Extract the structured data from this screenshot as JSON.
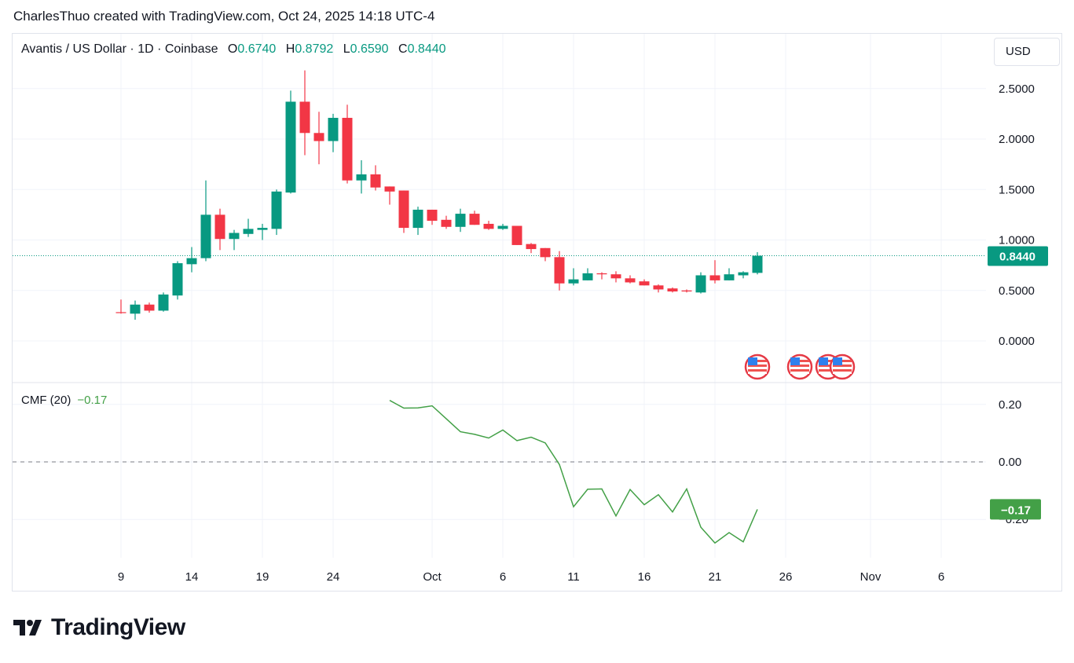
{
  "credit": "CharlesThuo created with TradingView.com, Oct 24, 2025 14:18 UTC-4",
  "legend": {
    "symbol": "Avantis / US Dollar · 1D · Coinbase",
    "o_label": "O",
    "o": "0.6740",
    "h_label": "H",
    "h": "0.8792",
    "l_label": "L",
    "l": "0.6590",
    "c_label": "C",
    "c": "0.8440"
  },
  "currency_button": "USD",
  "cmf_legend": {
    "name": "CMF (20)",
    "value": "−0.17"
  },
  "logo_text": "TradingView",
  "colors": {
    "up": "#089981",
    "down": "#f23645",
    "cmf": "#43a047",
    "grid": "#f0f3fa"
  },
  "chart_data": [
    {
      "type": "candlestick",
      "title": "Avantis / US Dollar · 1D · Coinbase",
      "ylim": [
        -0.25,
        2.9
      ],
      "y_ticks": [
        "2.5000",
        "2.0000",
        "1.5000",
        "1.0000",
        "0.5000",
        "0.0000"
      ],
      "last_price_label": "0.8440",
      "last_price": 0.844,
      "grid": true,
      "x_ticks": [
        {
          "label": "9",
          "date": "2025-09-09"
        },
        {
          "label": "14",
          "date": "2025-09-14"
        },
        {
          "label": "19",
          "date": "2025-09-19"
        },
        {
          "label": "24",
          "date": "2025-09-24"
        },
        {
          "label": "Oct",
          "date": "2025-10-01"
        },
        {
          "label": "6",
          "date": "2025-10-06"
        },
        {
          "label": "11",
          "date": "2025-10-11"
        },
        {
          "label": "16",
          "date": "2025-10-16"
        },
        {
          "label": "21",
          "date": "2025-10-21"
        },
        {
          "label": "26",
          "date": "2025-10-26"
        },
        {
          "label": "Nov",
          "date": "2025-11-01"
        },
        {
          "label": "6",
          "date": "2025-11-06"
        }
      ],
      "candles": [
        [
          "2025-09-09",
          0.285,
          0.41,
          0.27,
          0.28
        ],
        [
          "2025-09-10",
          0.27,
          0.4,
          0.21,
          0.36
        ],
        [
          "2025-09-11",
          0.36,
          0.38,
          0.28,
          0.3
        ],
        [
          "2025-09-12",
          0.3,
          0.48,
          0.29,
          0.46
        ],
        [
          "2025-09-13",
          0.45,
          0.79,
          0.41,
          0.77
        ],
        [
          "2025-09-14",
          0.76,
          0.93,
          0.68,
          0.82
        ],
        [
          "2025-09-15",
          0.82,
          1.59,
          0.79,
          1.25
        ],
        [
          "2025-09-16",
          1.25,
          1.31,
          0.9,
          1.01
        ],
        [
          "2025-09-17",
          1.01,
          1.1,
          0.9,
          1.07
        ],
        [
          "2025-09-18",
          1.06,
          1.21,
          1.03,
          1.11
        ],
        [
          "2025-09-19",
          1.1,
          1.16,
          1.0,
          1.12
        ],
        [
          "2025-09-20",
          1.11,
          1.5,
          1.05,
          1.48
        ],
        [
          "2025-09-21",
          1.47,
          2.48,
          1.46,
          2.37
        ],
        [
          "2025-09-22",
          2.37,
          2.68,
          1.84,
          2.06
        ],
        [
          "2025-09-23",
          2.06,
          2.27,
          1.75,
          1.98
        ],
        [
          "2025-09-24",
          1.98,
          2.25,
          1.87,
          2.21
        ],
        [
          "2025-09-25",
          2.21,
          2.34,
          1.56,
          1.59
        ],
        [
          "2025-09-26",
          1.59,
          1.79,
          1.46,
          1.65
        ],
        [
          "2025-09-27",
          1.65,
          1.74,
          1.49,
          1.52
        ],
        [
          "2025-09-28",
          1.53,
          1.53,
          1.35,
          1.48
        ],
        [
          "2025-09-29",
          1.49,
          1.49,
          1.07,
          1.12
        ],
        [
          "2025-09-30",
          1.12,
          1.33,
          1.05,
          1.3
        ],
        [
          "2025-10-01",
          1.3,
          1.3,
          1.15,
          1.19
        ],
        [
          "2025-10-02",
          1.2,
          1.24,
          1.11,
          1.13
        ],
        [
          "2025-10-03",
          1.13,
          1.31,
          1.08,
          1.26
        ],
        [
          "2025-10-04",
          1.26,
          1.29,
          1.15,
          1.15
        ],
        [
          "2025-10-05",
          1.16,
          1.19,
          1.1,
          1.11
        ],
        [
          "2025-10-06",
          1.11,
          1.16,
          1.1,
          1.14
        ],
        [
          "2025-10-07",
          1.14,
          1.14,
          0.95,
          0.95
        ],
        [
          "2025-10-08",
          0.96,
          0.97,
          0.87,
          0.91
        ],
        [
          "2025-10-09",
          0.92,
          0.92,
          0.79,
          0.83
        ],
        [
          "2025-10-10",
          0.83,
          0.89,
          0.5,
          0.57
        ],
        [
          "2025-10-11",
          0.57,
          0.72,
          0.55,
          0.61
        ],
        [
          "2025-10-12",
          0.6,
          0.72,
          0.6,
          0.67
        ],
        [
          "2025-10-13",
          0.67,
          0.68,
          0.61,
          0.66
        ],
        [
          "2025-10-14",
          0.66,
          0.69,
          0.58,
          0.62
        ],
        [
          "2025-10-15",
          0.62,
          0.65,
          0.57,
          0.58
        ],
        [
          "2025-10-16",
          0.59,
          0.61,
          0.55,
          0.55
        ],
        [
          "2025-10-17",
          0.55,
          0.56,
          0.48,
          0.51
        ],
        [
          "2025-10-18",
          0.52,
          0.53,
          0.48,
          0.49
        ],
        [
          "2025-10-19",
          0.5,
          0.51,
          0.48,
          0.49
        ],
        [
          "2025-10-20",
          0.48,
          0.68,
          0.47,
          0.65
        ],
        [
          "2025-10-21",
          0.65,
          0.8,
          0.57,
          0.6
        ],
        [
          "2025-10-22",
          0.6,
          0.72,
          0.6,
          0.66
        ],
        [
          "2025-10-23",
          0.65,
          0.69,
          0.62,
          0.68
        ],
        [
          "2025-10-24",
          0.674,
          0.8792,
          0.659,
          0.844
        ]
      ],
      "event_flags": [
        "2025-10-24",
        "2025-10-27",
        "2025-10-29",
        "2025-10-30"
      ]
    },
    {
      "type": "line",
      "title": "CMF (20)",
      "ylim": [
        -0.34,
        0.25
      ],
      "y_ticks": [
        "0.20",
        "0.00",
        "−0.20"
      ],
      "zero_line": "dashed",
      "last_value_label": "−0.17",
      "series": [
        {
          "name": "CMF (20)",
          "start_date": "2025-09-28",
          "values": [
            0.214,
            0.187,
            0.188,
            0.195,
            0.15,
            0.105,
            0.096,
            0.083,
            0.111,
            0.074,
            0.086,
            0.066,
            -0.009,
            -0.156,
            -0.095,
            -0.094,
            -0.188,
            -0.096,
            -0.149,
            -0.114,
            -0.174,
            -0.094,
            -0.227,
            -0.282,
            -0.246,
            -0.278,
            -0.165
          ]
        }
      ]
    }
  ]
}
